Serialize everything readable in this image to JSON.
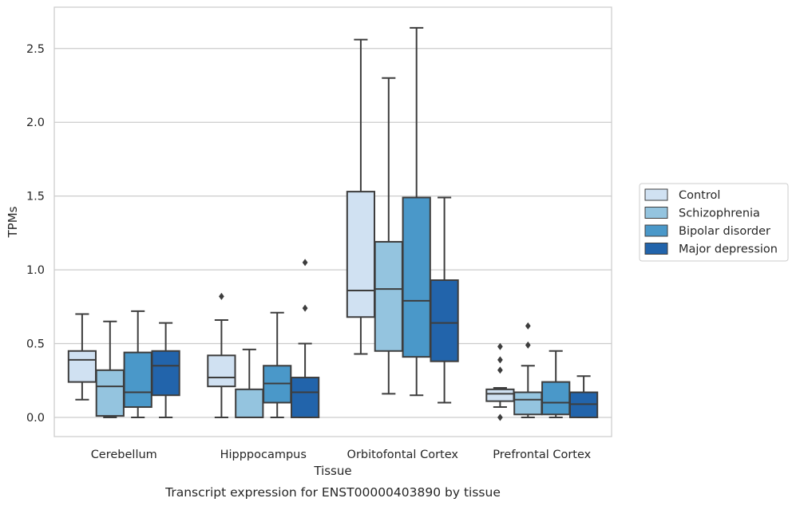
{
  "caption": "Transcript expression for ENST00000403890 by tissue",
  "chart_data": {
    "type": "box",
    "xlabel": "Tissue",
    "ylabel": "TPMs",
    "ylim": [
      -0.13,
      2.78
    ],
    "yticks": [
      0.0,
      0.5,
      1.0,
      1.5,
      2.0,
      2.5
    ],
    "ytick_labels": [
      "0.0",
      "0.5",
      "1.0",
      "1.5",
      "2.0",
      "2.5"
    ],
    "grid": "horizontal",
    "legend_position": "right",
    "categories": [
      "Cerebellum",
      "Hipppocampus",
      "Orbitofontal Cortex",
      "Prefrontal Cortex"
    ],
    "series": [
      {
        "name": "Control",
        "color": "#d0e1f2",
        "boxes": [
          {
            "whislo": 0.12,
            "q1": 0.24,
            "med": 0.39,
            "q3": 0.45,
            "whishi": 0.7,
            "fliers": []
          },
          {
            "whislo": 0.0,
            "q1": 0.21,
            "med": 0.27,
            "q3": 0.42,
            "whishi": 0.66,
            "fliers": [
              0.82
            ]
          },
          {
            "whislo": 0.43,
            "q1": 0.68,
            "med": 0.86,
            "q3": 1.53,
            "whishi": 2.56,
            "fliers": []
          },
          {
            "whislo": 0.07,
            "q1": 0.11,
            "med": 0.16,
            "q3": 0.19,
            "whishi": 0.2,
            "fliers": [
              0.0,
              0.32,
              0.39,
              0.48
            ]
          }
        ]
      },
      {
        "name": "Schizophrenia",
        "color": "#94c4df",
        "boxes": [
          {
            "whislo": 0.0,
            "q1": 0.01,
            "med": 0.21,
            "q3": 0.32,
            "whishi": 0.65,
            "fliers": []
          },
          {
            "whislo": 0.0,
            "q1": 0.0,
            "med": 0.0,
            "q3": 0.19,
            "whishi": 0.46,
            "fliers": []
          },
          {
            "whislo": 0.16,
            "q1": 0.45,
            "med": 0.87,
            "q3": 1.19,
            "whishi": 2.3,
            "fliers": []
          },
          {
            "whislo": 0.0,
            "q1": 0.02,
            "med": 0.12,
            "q3": 0.17,
            "whishi": 0.35,
            "fliers": [
              0.49,
              0.62
            ]
          }
        ]
      },
      {
        "name": "Bipolar disorder",
        "color": "#4a98c9",
        "boxes": [
          {
            "whislo": 0.0,
            "q1": 0.07,
            "med": 0.17,
            "q3": 0.44,
            "whishi": 0.72,
            "fliers": []
          },
          {
            "whislo": 0.0,
            "q1": 0.1,
            "med": 0.23,
            "q3": 0.35,
            "whishi": 0.71,
            "fliers": []
          },
          {
            "whislo": 0.15,
            "q1": 0.41,
            "med": 0.79,
            "q3": 1.49,
            "whishi": 2.64,
            "fliers": []
          },
          {
            "whislo": 0.0,
            "q1": 0.02,
            "med": 0.1,
            "q3": 0.24,
            "whishi": 0.45,
            "fliers": []
          }
        ]
      },
      {
        "name": "Major depression",
        "color": "#2264ab",
        "boxes": [
          {
            "whislo": 0.0,
            "q1": 0.15,
            "med": 0.35,
            "q3": 0.45,
            "whishi": 0.64,
            "fliers": []
          },
          {
            "whislo": 0.0,
            "q1": 0.0,
            "med": 0.17,
            "q3": 0.27,
            "whishi": 0.5,
            "fliers": [
              0.74,
              1.05
            ]
          },
          {
            "whislo": 0.1,
            "q1": 0.38,
            "med": 0.64,
            "q3": 0.93,
            "whishi": 1.49,
            "fliers": []
          },
          {
            "whislo": 0.0,
            "q1": 0.0,
            "med": 0.09,
            "q3": 0.17,
            "whishi": 0.28,
            "fliers": []
          }
        ]
      }
    ]
  }
}
